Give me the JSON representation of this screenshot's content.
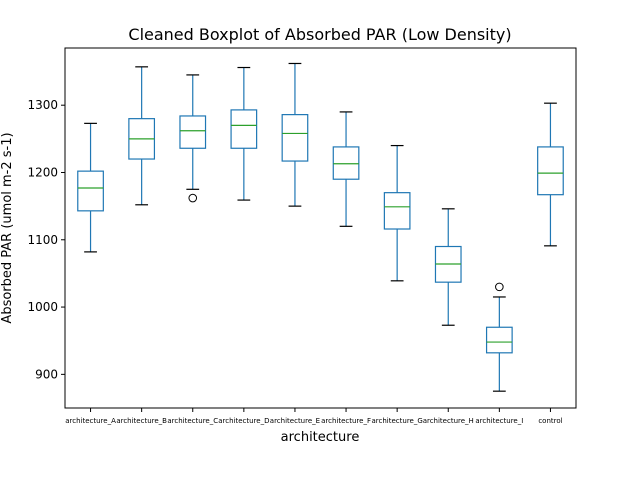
{
  "chart_data": {
    "type": "boxplot",
    "title": "Cleaned Boxplot of Absorbed PAR (Low Density)",
    "xlabel": "architecture",
    "ylabel": "Absorbed PAR (umol m-2 s-1)",
    "ylim": [
      850,
      1385
    ],
    "yticks": [
      900,
      1000,
      1100,
      1200,
      1300
    ],
    "grid": false,
    "colors": {
      "box": "#1f77b4",
      "median": "#2ca02c",
      "whisker": "#000000",
      "outlier": "#000000"
    },
    "categories": [
      "architecture_A",
      "architecture_B",
      "architecture_C",
      "architecture_D",
      "architecture_E",
      "architecture_F",
      "architecture_G",
      "architecture_H",
      "architecture_I",
      "control"
    ],
    "boxes": [
      {
        "label": "architecture_A",
        "whislo": 1082,
        "q1": 1143,
        "med": 1177,
        "q3": 1202,
        "whishi": 1273,
        "fliers": []
      },
      {
        "label": "architecture_B",
        "whislo": 1152,
        "q1": 1220,
        "med": 1250,
        "q3": 1280,
        "whishi": 1357,
        "fliers": []
      },
      {
        "label": "architecture_C",
        "whislo": 1175,
        "q1": 1236,
        "med": 1262,
        "q3": 1284,
        "whishi": 1345,
        "fliers": [
          1162
        ]
      },
      {
        "label": "architecture_D",
        "whislo": 1159,
        "q1": 1236,
        "med": 1270,
        "q3": 1293,
        "whishi": 1356,
        "fliers": []
      },
      {
        "label": "architecture_E",
        "whislo": 1150,
        "q1": 1217,
        "med": 1258,
        "q3": 1286,
        "whishi": 1362,
        "fliers": []
      },
      {
        "label": "architecture_F",
        "whislo": 1120,
        "q1": 1190,
        "med": 1213,
        "q3": 1238,
        "whishi": 1290,
        "fliers": []
      },
      {
        "label": "architecture_G",
        "whislo": 1039,
        "q1": 1116,
        "med": 1149,
        "q3": 1170,
        "whishi": 1240,
        "fliers": []
      },
      {
        "label": "architecture_H",
        "whislo": 973,
        "q1": 1037,
        "med": 1064,
        "q3": 1090,
        "whishi": 1146,
        "fliers": []
      },
      {
        "label": "architecture_I",
        "whislo": 875,
        "q1": 932,
        "med": 948,
        "q3": 970,
        "whishi": 1015,
        "fliers": [
          1030
        ]
      },
      {
        "label": "control",
        "whislo": 1091,
        "q1": 1167,
        "med": 1199,
        "q3": 1238,
        "whishi": 1303,
        "fliers": []
      }
    ]
  }
}
